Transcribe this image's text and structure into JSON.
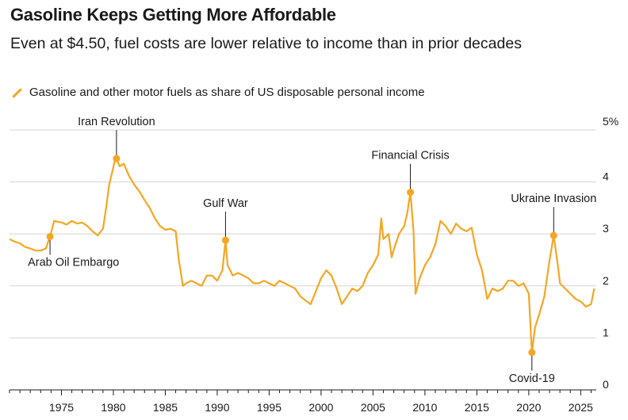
{
  "header": {
    "title": "Gasoline Keeps Getting More Affordable",
    "subtitle": "Even at $4.50, fuel costs are lower relative to income than in prior decades",
    "legend_label": "Gasoline and other motor fuels as share of US disposable personal income"
  },
  "colors": {
    "series": "#f5a623",
    "grid": "#d6d6d6",
    "axis": "#1a1a1a"
  },
  "chart_data": {
    "type": "line",
    "title": "Gasoline Keeps Getting More Affordable",
    "subtitle": "Even at $4.50, fuel costs are lower relative to income than in prior decades",
    "xlabel": "",
    "ylabel": "",
    "xlim": [
      1970,
      2026.5
    ],
    "ylim": [
      0,
      5
    ],
    "y_unit": "%",
    "grid": true,
    "legend_position": "top-left",
    "x_ticks": [
      1975,
      1980,
      1985,
      1990,
      1995,
      2000,
      2005,
      2010,
      2015,
      2020,
      2025
    ],
    "y_ticks": [
      0,
      1,
      2,
      3,
      4,
      5
    ],
    "y_tick_labels": [
      "0",
      "1",
      "2",
      "3",
      "4",
      "5%"
    ],
    "series": [
      {
        "name": "Gasoline and other motor fuels as share of US disposable personal income",
        "points": [
          [
            1970.0,
            2.9
          ],
          [
            1970.5,
            2.85
          ],
          [
            1971.0,
            2.82
          ],
          [
            1971.5,
            2.75
          ],
          [
            1972.0,
            2.72
          ],
          [
            1972.5,
            2.68
          ],
          [
            1973.0,
            2.68
          ],
          [
            1973.5,
            2.72
          ],
          [
            1973.9,
            2.95
          ],
          [
            1974.3,
            3.25
          ],
          [
            1975.0,
            3.22
          ],
          [
            1975.5,
            3.18
          ],
          [
            1976.0,
            3.25
          ],
          [
            1976.5,
            3.2
          ],
          [
            1977.0,
            3.22
          ],
          [
            1977.5,
            3.15
          ],
          [
            1978.0,
            3.05
          ],
          [
            1978.5,
            2.97
          ],
          [
            1979.0,
            3.1
          ],
          [
            1979.3,
            3.5
          ],
          [
            1979.6,
            3.95
          ],
          [
            1979.9,
            4.2
          ],
          [
            1980.1,
            4.38
          ],
          [
            1980.3,
            4.45
          ],
          [
            1980.6,
            4.3
          ],
          [
            1981.0,
            4.35
          ],
          [
            1981.5,
            4.12
          ],
          [
            1982.0,
            3.95
          ],
          [
            1982.5,
            3.82
          ],
          [
            1983.0,
            3.65
          ],
          [
            1983.5,
            3.5
          ],
          [
            1984.0,
            3.3
          ],
          [
            1984.5,
            3.15
          ],
          [
            1985.0,
            3.08
          ],
          [
            1985.5,
            3.1
          ],
          [
            1986.0,
            3.05
          ],
          [
            1986.3,
            2.5
          ],
          [
            1986.7,
            2.0
          ],
          [
            1987.0,
            2.05
          ],
          [
            1987.5,
            2.1
          ],
          [
            1988.0,
            2.05
          ],
          [
            1988.5,
            2.0
          ],
          [
            1989.0,
            2.2
          ],
          [
            1989.5,
            2.2
          ],
          [
            1990.0,
            2.1
          ],
          [
            1990.5,
            2.3
          ],
          [
            1990.8,
            2.88
          ],
          [
            1991.0,
            2.4
          ],
          [
            1991.5,
            2.2
          ],
          [
            1992.0,
            2.25
          ],
          [
            1992.5,
            2.2
          ],
          [
            1993.0,
            2.15
          ],
          [
            1993.5,
            2.05
          ],
          [
            1994.0,
            2.05
          ],
          [
            1994.5,
            2.1
          ],
          [
            1995.0,
            2.05
          ],
          [
            1995.5,
            2.0
          ],
          [
            1996.0,
            2.1
          ],
          [
            1996.5,
            2.05
          ],
          [
            1997.0,
            2.0
          ],
          [
            1997.5,
            1.95
          ],
          [
            1998.0,
            1.8
          ],
          [
            1998.5,
            1.72
          ],
          [
            1999.0,
            1.65
          ],
          [
            1999.5,
            1.9
          ],
          [
            2000.0,
            2.15
          ],
          [
            2000.5,
            2.3
          ],
          [
            2001.0,
            2.2
          ],
          [
            2001.5,
            1.95
          ],
          [
            2002.0,
            1.65
          ],
          [
            2002.5,
            1.8
          ],
          [
            2003.0,
            1.95
          ],
          [
            2003.5,
            1.9
          ],
          [
            2004.0,
            2.0
          ],
          [
            2004.5,
            2.25
          ],
          [
            2005.0,
            2.4
          ],
          [
            2005.5,
            2.6
          ],
          [
            2005.8,
            3.3
          ],
          [
            2006.0,
            2.9
          ],
          [
            2006.5,
            3.0
          ],
          [
            2006.8,
            2.55
          ],
          [
            2007.0,
            2.7
          ],
          [
            2007.5,
            3.0
          ],
          [
            2008.0,
            3.15
          ],
          [
            2008.3,
            3.4
          ],
          [
            2008.6,
            3.8
          ],
          [
            2008.9,
            3.05
          ],
          [
            2009.1,
            1.85
          ],
          [
            2009.5,
            2.15
          ],
          [
            2010.0,
            2.4
          ],
          [
            2010.5,
            2.55
          ],
          [
            2011.0,
            2.8
          ],
          [
            2011.5,
            3.25
          ],
          [
            2012.0,
            3.15
          ],
          [
            2012.5,
            3.0
          ],
          [
            2013.0,
            3.2
          ],
          [
            2013.5,
            3.1
          ],
          [
            2014.0,
            3.05
          ],
          [
            2014.5,
            3.12
          ],
          [
            2015.0,
            2.6
          ],
          [
            2015.5,
            2.3
          ],
          [
            2016.0,
            1.75
          ],
          [
            2016.5,
            1.95
          ],
          [
            2017.0,
            1.9
          ],
          [
            2017.5,
            1.95
          ],
          [
            2018.0,
            2.1
          ],
          [
            2018.5,
            2.1
          ],
          [
            2019.0,
            2.0
          ],
          [
            2019.5,
            2.05
          ],
          [
            2020.0,
            1.85
          ],
          [
            2020.3,
            0.72
          ],
          [
            2020.6,
            1.2
          ],
          [
            2021.0,
            1.45
          ],
          [
            2021.5,
            1.8
          ],
          [
            2022.0,
            2.5
          ],
          [
            2022.4,
            2.97
          ],
          [
            2022.8,
            2.4
          ],
          [
            2023.0,
            2.05
          ],
          [
            2023.5,
            1.95
          ],
          [
            2024.0,
            1.85
          ],
          [
            2024.5,
            1.75
          ],
          [
            2025.0,
            1.7
          ],
          [
            2025.5,
            1.6
          ],
          [
            2026.0,
            1.65
          ],
          [
            2026.3,
            1.95
          ]
        ]
      }
    ],
    "annotations": [
      {
        "label": "Arab Oil Embargo",
        "x": 1973.9,
        "y": 2.95,
        "text_position": "below"
      },
      {
        "label": "Iran Revolution",
        "x": 1980.3,
        "y": 4.45,
        "text_position": "above"
      },
      {
        "label": "Gulf War",
        "x": 1990.8,
        "y": 2.88,
        "text_position": "above"
      },
      {
        "label": "Financial Crisis",
        "x": 2008.6,
        "y": 3.8,
        "text_position": "above"
      },
      {
        "label": "Covid-19",
        "x": 2020.3,
        "y": 0.72,
        "text_position": "below"
      },
      {
        "label": "Ukraine Invasion",
        "x": 2022.4,
        "y": 2.97,
        "text_position": "above"
      }
    ]
  }
}
